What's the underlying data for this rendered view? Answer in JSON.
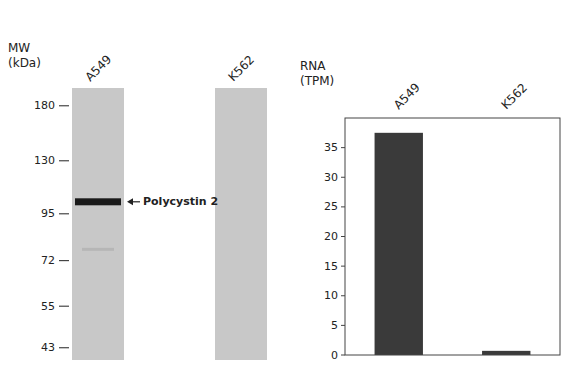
{
  "chart_data": [
    {
      "type": "blot",
      "categories": [
        "A549",
        "K562"
      ],
      "ylabel": [
        "MW",
        "(kDa)"
      ],
      "ylim": [
        40,
        200
      ],
      "yticks": [
        180,
        130,
        95,
        72,
        55,
        43
      ],
      "log": "y",
      "bands": [
        102,
        77
      ],
      "colors": [
        "#1a1a1a",
        "#aaaaaa"
      ],
      "color": "#c8c8c8",
      "annotation": "Polycystin 2"
    },
    {
      "type": "bar",
      "categories": [
        "A549",
        "K562"
      ],
      "values": [
        37.5,
        0.7
      ],
      "color": "#3a3a3a",
      "ylabel": [
        "RNA",
        "(TPM)"
      ],
      "ylim": [
        0,
        40
      ],
      "yticks": [
        0,
        5,
        10,
        15,
        20,
        25,
        30,
        35
      ]
    }
  ]
}
